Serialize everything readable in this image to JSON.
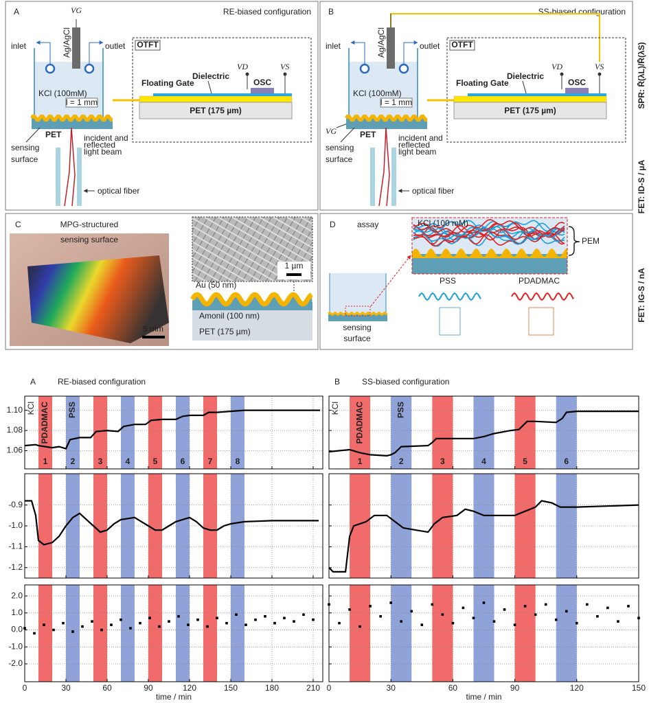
{
  "figure": {
    "panel_a": {
      "letter": "A",
      "title": "RE-biased configuration",
      "vg": "VG",
      "electrode": "Ag/AgCl",
      "inlet": "inlet",
      "outlet": "outlet",
      "electrolyte": "KCl (100mM)",
      "distance": "l = 1 mm",
      "substrate": "PET",
      "sensing_surface": [
        "sensing",
        "surface"
      ],
      "beam": [
        "incident and",
        "reflected",
        "light beam"
      ],
      "fiber": "optical fiber",
      "otft": "OTFT",
      "floating_gate": "Floating Gate",
      "dielectric": "Dielectric",
      "vd": "VD",
      "vs": "VS",
      "osc": "OSC",
      "otft_substrate": "PET (175 µm)"
    },
    "panel_b": {
      "letter": "B",
      "title": "SS-biased configuration",
      "vg": "VG",
      "electrode": "Ag/AgCl",
      "inlet": "inlet",
      "outlet": "outlet",
      "electrolyte": "KCl (100mM)",
      "distance": "l = 1 mm",
      "substrate": "PET",
      "sensing_surface": [
        "sensing",
        "surface"
      ],
      "beam": [
        "incident and",
        "reflected",
        "light beam"
      ],
      "fiber": "optical fiber",
      "otft": "OTFT",
      "floating_gate": "Floating Gate",
      "dielectric": "Dielectric",
      "vd": "VD",
      "vs": "VS",
      "osc": "OSC",
      "otft_substrate": "PET (175 µm)"
    },
    "panel_c": {
      "letter": "C",
      "title": [
        "MPG-structured",
        "sensing surface"
      ],
      "photo_scale": "5 mm",
      "sem_scale": "1 µm",
      "gold": "Au (50 nm)",
      "amonil": "Amonil (100 nm)",
      "pet": "PET (175 µm)"
    },
    "panel_d": {
      "letter": "D",
      "title": "assay",
      "electrolyte": "KCl (100 mM)",
      "pem": "PEM",
      "pss": "PSS",
      "pdadmac": "PDADMAC",
      "sensing_surface": [
        "sensing",
        "surface"
      ]
    }
  },
  "chart_data": [
    {
      "type": "line",
      "panel_label": "A",
      "title": "RE-biased configuration",
      "color": "#000000",
      "grid": true,
      "x": [
        0,
        8,
        10,
        20,
        25,
        30,
        33,
        40,
        48,
        52,
        60,
        68,
        72,
        80,
        88,
        92,
        100,
        110,
        115,
        120,
        130,
        134,
        140,
        150,
        160,
        215
      ],
      "values": [
        1.065,
        1.066,
        1.065,
        1.063,
        1.064,
        1.062,
        1.071,
        1.073,
        1.073,
        1.079,
        1.08,
        1.079,
        1.084,
        1.086,
        1.086,
        1.09,
        1.091,
        1.091,
        1.094,
        1.095,
        1.095,
        1.098,
        1.098,
        1.099,
        1.1,
        1.1
      ],
      "xlim": [
        0,
        217
      ],
      "xticks": [
        0,
        30,
        60,
        90,
        120,
        150,
        180,
        210
      ],
      "ylim": [
        1.042,
        1.114
      ],
      "yticks": [
        {
          "value": 1.06,
          "label": "1.06"
        },
        {
          "value": 1.08,
          "label": "1.08"
        },
        {
          "value": 1.1,
          "label": "1.10"
        }
      ],
      "baseline_label": "KCl",
      "regions": [
        {
          "start": 10,
          "end": 20,
          "color": "#f26b6b",
          "label": "1",
          "name": "PDADMAC"
        },
        {
          "start": 30,
          "end": 40,
          "color": "#8fa3d9",
          "label": "2",
          "name": "PSS"
        },
        {
          "start": 50,
          "end": 60,
          "color": "#f26b6b",
          "label": "3"
        },
        {
          "start": 70,
          "end": 80,
          "color": "#8fa3d9",
          "label": "4"
        },
        {
          "start": 90,
          "end": 100,
          "color": "#f26b6b",
          "label": "5"
        },
        {
          "start": 110,
          "end": 120,
          "color": "#8fa3d9",
          "label": "6"
        },
        {
          "start": 130,
          "end": 140,
          "color": "#f26b6b",
          "label": "7"
        },
        {
          "start": 150,
          "end": 160,
          "color": "#8fa3d9",
          "label": "8"
        }
      ]
    },
    {
      "type": "line",
      "panel_label": "B",
      "title": "SS-biased configuration",
      "color": "#000000",
      "grid": true,
      "ylabel": "SPR: R̄(λL)/R̄(λS)",
      "x": [
        0,
        10,
        15,
        20,
        28,
        30,
        32,
        35,
        48,
        50,
        52,
        60,
        70,
        75,
        80,
        88,
        92,
        96,
        100,
        110,
        113,
        115,
        120,
        150
      ],
      "values": [
        1.059,
        1.061,
        1.058,
        1.056,
        1.055,
        1.056,
        1.058,
        1.064,
        1.065,
        1.068,
        1.072,
        1.072,
        1.072,
        1.074,
        1.077,
        1.08,
        1.081,
        1.089,
        1.089,
        1.088,
        1.092,
        1.098,
        1.099,
        1.099
      ],
      "xlim": [
        0,
        150
      ],
      "xticks": [
        0,
        30,
        60,
        90,
        120,
        150
      ],
      "ylim": [
        1.042,
        1.114
      ],
      "yticks": [
        1.06,
        1.08,
        1.1
      ],
      "baseline_label": "KCl",
      "regions": [
        {
          "start": 10,
          "end": 20,
          "color": "#f26b6b",
          "label": "1",
          "name": "PDADMAC"
        },
        {
          "start": 30,
          "end": 40,
          "color": "#8fa3d9",
          "label": "2",
          "name": "PSS"
        },
        {
          "start": 50,
          "end": 60,
          "color": "#f26b6b",
          "label": "3"
        },
        {
          "start": 70,
          "end": 80,
          "color": "#8fa3d9",
          "label": "4"
        },
        {
          "start": 90,
          "end": 100,
          "color": "#f26b6b",
          "label": "5"
        },
        {
          "start": 110,
          "end": 120,
          "color": "#8fa3d9",
          "label": "6"
        }
      ]
    },
    {
      "type": "line",
      "color": "#000000",
      "grid": true,
      "x": [
        0,
        5,
        8,
        10,
        14,
        20,
        25,
        30,
        35,
        40,
        45,
        50,
        55,
        60,
        65,
        70,
        80,
        85,
        90,
        95,
        100,
        105,
        110,
        120,
        125,
        130,
        135,
        140,
        145,
        150,
        160,
        180,
        214
      ],
      "values": [
        -0.88,
        -0.88,
        -0.95,
        -1.07,
        -1.09,
        -1.08,
        -1.05,
        -1.0,
        -0.96,
        -0.94,
        -0.97,
        -1.0,
        -1.03,
        -1.02,
        -0.99,
        -0.97,
        -0.96,
        -0.98,
        -1.0,
        -1.02,
        -1.02,
        -1.0,
        -0.98,
        -0.96,
        -0.98,
        -1.01,
        -1.02,
        -1.02,
        -1.0,
        -0.99,
        -0.98,
        -0.975,
        -0.975
      ],
      "xlim": [
        0,
        217
      ],
      "xticks": [
        0,
        30,
        60,
        90,
        120,
        150,
        180,
        210
      ],
      "ylim": [
        -1.25,
        -0.75
      ],
      "yticks": [
        -0.9,
        {
          "value": -1.0,
          "label": "-1.0"
        },
        -1.1,
        -1.2
      ],
      "regions": [
        {
          "start": 10,
          "end": 20,
          "color": "#f26b6b"
        },
        {
          "start": 30,
          "end": 40,
          "color": "#8fa3d9"
        },
        {
          "start": 50,
          "end": 60,
          "color": "#f26b6b"
        },
        {
          "start": 70,
          "end": 80,
          "color": "#8fa3d9"
        },
        {
          "start": 90,
          "end": 100,
          "color": "#f26b6b"
        },
        {
          "start": 110,
          "end": 120,
          "color": "#8fa3d9"
        },
        {
          "start": 130,
          "end": 140,
          "color": "#f26b6b"
        },
        {
          "start": 150,
          "end": 160,
          "color": "#8fa3d9"
        }
      ]
    },
    {
      "type": "line",
      "color": "#000000",
      "grid": true,
      "ylabel": "FET: ID-S / µA",
      "x": [
        0,
        2,
        8,
        10,
        12,
        18,
        22,
        28,
        32,
        36,
        42,
        48,
        51,
        55,
        62,
        66,
        70,
        75,
        90,
        95,
        100,
        103,
        108,
        112,
        120,
        150
      ],
      "values": [
        -1.2,
        -1.22,
        -1.22,
        -1.05,
        -1.0,
        -0.98,
        -0.95,
        -0.95,
        -0.98,
        -1.01,
        -1.02,
        -1.03,
        -0.99,
        -0.96,
        -0.95,
        -0.92,
        -0.93,
        -0.95,
        -0.95,
        -0.93,
        -0.91,
        -0.88,
        -0.89,
        -0.91,
        -0.91,
        -0.9
      ],
      "xlim": [
        0,
        150
      ],
      "xticks": [
        0,
        30,
        60,
        90,
        120,
        150
      ],
      "ylim": [
        -1.25,
        -0.75
      ],
      "yticks": [
        -0.9,
        -1.0,
        -1.1,
        -1.2
      ],
      "regions": [
        {
          "start": 10,
          "end": 20,
          "color": "#f26b6b"
        },
        {
          "start": 30,
          "end": 40,
          "color": "#8fa3d9"
        },
        {
          "start": 50,
          "end": 60,
          "color": "#f26b6b"
        },
        {
          "start": 70,
          "end": 80,
          "color": "#8fa3d9"
        },
        {
          "start": 90,
          "end": 100,
          "color": "#f26b6b"
        },
        {
          "start": 110,
          "end": 120,
          "color": "#8fa3d9"
        }
      ]
    },
    {
      "type": "scatter",
      "color": "#000000",
      "grid": true,
      "xlabel": "time / min",
      "x": [
        0,
        7,
        14,
        21,
        28,
        35,
        42,
        49,
        56,
        63,
        70,
        77,
        84,
        91,
        98,
        105,
        112,
        119,
        126,
        133,
        140,
        147,
        154,
        161,
        168,
        175,
        182,
        189,
        196,
        203,
        210
      ],
      "values": [
        0.1,
        -0.2,
        0.3,
        0.0,
        0.4,
        -0.1,
        0.2,
        0.5,
        0.0,
        0.3,
        0.6,
        0.1,
        0.4,
        0.7,
        0.2,
        0.5,
        0.8,
        0.3,
        0.6,
        0.2,
        0.7,
        0.4,
        0.9,
        0.3,
        0.6,
        0.8,
        0.4,
        0.7,
        0.5,
        0.9,
        0.6
      ],
      "xlim": [
        0,
        217
      ],
      "xticks": [
        0,
        30,
        60,
        90,
        120,
        150,
        180,
        210
      ],
      "ylim": [
        -3.05,
        2.65
      ],
      "yticks": [
        {
          "value": 2,
          "label": "2.0"
        },
        {
          "value": 1,
          "label": "1.0"
        },
        {
          "value": 0,
          "label": "0.0"
        },
        {
          "value": -1,
          "label": "-1.0"
        },
        {
          "value": -2,
          "label": "-2.0"
        }
      ],
      "regions": [
        {
          "start": 10,
          "end": 20,
          "color": "#f26b6b"
        },
        {
          "start": 30,
          "end": 40,
          "color": "#8fa3d9"
        },
        {
          "start": 50,
          "end": 60,
          "color": "#f26b6b"
        },
        {
          "start": 70,
          "end": 80,
          "color": "#8fa3d9"
        },
        {
          "start": 90,
          "end": 100,
          "color": "#f26b6b"
        },
        {
          "start": 110,
          "end": 120,
          "color": "#8fa3d9"
        },
        {
          "start": 130,
          "end": 140,
          "color": "#f26b6b"
        },
        {
          "start": 150,
          "end": 160,
          "color": "#8fa3d9"
        }
      ]
    },
    {
      "type": "scatter",
      "color": "#000000",
      "grid": true,
      "xlabel": "time / min",
      "ylabel": "FET: IG-S / nA",
      "x": [
        0,
        5,
        10,
        15,
        20,
        25,
        30,
        35,
        40,
        45,
        50,
        55,
        60,
        65,
        70,
        75,
        80,
        85,
        90,
        95,
        100,
        105,
        110,
        115,
        120,
        125,
        130,
        135,
        140,
        145,
        150
      ],
      "values": [
        1.5,
        0.4,
        1.2,
        0.2,
        1.4,
        0.8,
        1.6,
        0.5,
        1.1,
        0.3,
        1.5,
        0.9,
        0.4,
        1.3,
        0.7,
        1.6,
        0.5,
        1.2,
        0.3,
        1.4,
        0.9,
        1.5,
        0.6,
        1.1,
        0.4,
        1.5,
        0.8,
        1.3,
        0.5,
        1.4,
        0.7
      ],
      "xlim": [
        0,
        150
      ],
      "xticks": [
        0,
        30,
        60,
        90,
        120,
        150
      ],
      "ylim": [
        -3.05,
        2.65
      ],
      "yticks": [
        2,
        1,
        0,
        -1,
        -2
      ],
      "regions": [
        {
          "start": 10,
          "end": 20,
          "color": "#f26b6b"
        },
        {
          "start": 30,
          "end": 40,
          "color": "#8fa3d9"
        },
        {
          "start": 50,
          "end": 60,
          "color": "#f26b6b"
        },
        {
          "start": 70,
          "end": 80,
          "color": "#8fa3d9"
        },
        {
          "start": 90,
          "end": 100,
          "color": "#f26b6b"
        },
        {
          "start": 110,
          "end": 120,
          "color": "#8fa3d9"
        }
      ]
    }
  ]
}
